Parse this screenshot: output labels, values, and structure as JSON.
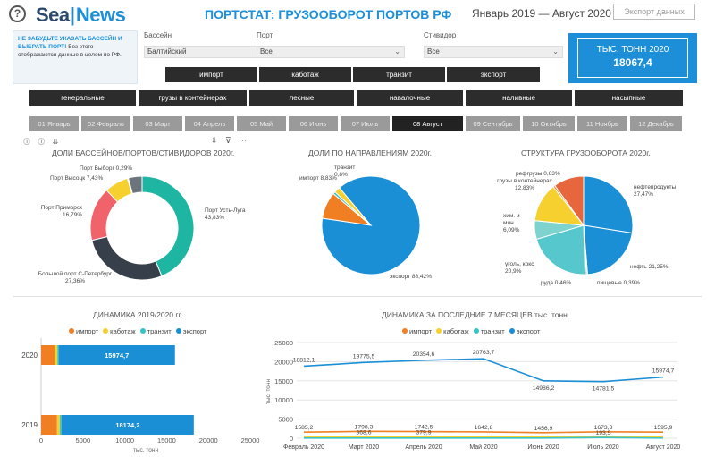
{
  "header": {
    "help_icon": "?",
    "logo_part1": "Sea",
    "logo_sep": "|",
    "logo_part2": "News",
    "title": "ПОРТСТАТ: ГРУЗООБОРОТ ПОРТОВ РФ",
    "period": "Январь 2019  —  Август 2020",
    "export_label": "Экспорт данных"
  },
  "notice": {
    "bold": "НЕ ЗАБУДЬТЕ УКАЗАТЬ БАССЕЙН И ВЫБРАТЬ ПОРТ!",
    "text": " Без этого отображаются данные в целом по РФ."
  },
  "filters": {
    "basin": {
      "label": "Бассейн",
      "value": "Балтийский"
    },
    "port": {
      "label": "Порт",
      "value": "Все"
    },
    "stevedore": {
      "label": "Стивидор",
      "value": "Все"
    }
  },
  "direction_buttons": [
    "импорт",
    "каботаж",
    "транзит",
    "экспорт"
  ],
  "cargo_buttons": [
    "генеральные",
    "грузы в контейнерах",
    "лесные",
    "навалочные",
    "наливные",
    "насыпные"
  ],
  "months": [
    "01 Январь",
    "02 Февраль",
    "03 Март",
    "04 Апрель",
    "05 Май",
    "06 Июнь",
    "07 Июль",
    "08 Август",
    "09 Сентябрь",
    "10 Октябрь",
    "11 Ноябрь",
    "12 Декабрь"
  ],
  "active_month": "08 Август",
  "kpi": {
    "label": "ТЫС. ТОНН 2020",
    "value": "18067,4"
  },
  "toolbar": {
    "left_icons": "⓵ ⓵ ⇊",
    "right_icons": "⇩ ⊽ ⋯"
  },
  "colors": {
    "accent": "#1c8fd8",
    "import": "#f07f23",
    "cabotage": "#f5d02e",
    "transit": "#35c3c9",
    "export": "#1a8fd6",
    "button_dark": "#2c2c2c",
    "month_inactive": "#9a9a9a"
  },
  "chart_data": [
    {
      "type": "pie",
      "title": "ДОЛИ БАССЕЙНОВ/ПОРТОВ/СТИВИДОРОВ 2020г.",
      "variant": "donut",
      "slices": [
        {
          "label": "Порт Усть-Луга",
          "value": 43.83,
          "text": "Порт Усть-Луга 43,83%",
          "color": "#1fb5a3"
        },
        {
          "label": "Большой порт С-Петербург",
          "value": 27.36,
          "text": "Большой порт С-Петербург 27,36%",
          "color": "#37404a"
        },
        {
          "label": "Порт Приморск",
          "value": 16.79,
          "text": "Порт Приморск 16,79%",
          "color": "#f0636b"
        },
        {
          "label": "Порт Высоцк",
          "value": 7.43,
          "text": "Порт Высоцк 7,43%",
          "color": "#f5d02e"
        },
        {
          "label": "Порт Выборг",
          "value": 0.29,
          "text": "Порт Выборг 0,29%",
          "color": "#9aa0a6"
        },
        {
          "label": "",
          "value": 4.3,
          "text": "",
          "color": "#6c757d"
        }
      ]
    },
    {
      "type": "pie",
      "title": "ДОЛИ ПО НАПРАВЛЕНИЯМ 2020г.",
      "slices": [
        {
          "label": "экспорт",
          "value": 88.42,
          "text": "экспорт 88,42%",
          "color": "#1a8fd6"
        },
        {
          "label": "импорт",
          "value": 8.83,
          "text": "импорт 8,83%",
          "color": "#f07f23"
        },
        {
          "label": "транзит",
          "value": 0.8,
          "text": "транзит 0,8%",
          "color": "#35c3c9"
        },
        {
          "label": "каботаж",
          "value": 1.95,
          "text": "",
          "color": "#f5d02e"
        }
      ]
    },
    {
      "type": "pie",
      "title": "СТРУКТУРА ГРУЗООБОРОТА 2020г.",
      "slices": [
        {
          "label": "нефтепродукты",
          "value": 27.47,
          "text": "нефтепродукты 27,47%",
          "color": "#1a8fd6"
        },
        {
          "label": "нефть",
          "value": 21.25,
          "text": "нефть 21,25%",
          "color": "#1a8fd6"
        },
        {
          "label": "пищевые",
          "value": 0.39,
          "text": "пищевые 0,39%",
          "color": "#3ec6cc"
        },
        {
          "label": "руда",
          "value": 0.46,
          "text": "руда 0,46%",
          "color": "#3ec6cc"
        },
        {
          "label": "уголь, кокс",
          "value": 20.9,
          "text": "уголь, кокс 20,9%",
          "color": "#56c7cd"
        },
        {
          "label": "хим. и мин. удобрения",
          "value": 6.09,
          "text": "хим. и мин. 6,09%",
          "color": "#7ed3cf"
        },
        {
          "label": "грузы в контейнерах",
          "value": 12.83,
          "text": "грузы в контейнерах 12,83%",
          "color": "#f5d02e"
        },
        {
          "label": "рефгрузы",
          "value": 0.63,
          "text": "рефгрузы 0,63%",
          "color": "#f07f23"
        },
        {
          "label": "",
          "value": 9.98,
          "text": "",
          "color": "#e8663b"
        }
      ]
    },
    {
      "type": "bar",
      "orientation": "horizontal",
      "stacked": true,
      "title": "ДИНАМИКА 2019/2020 гг.",
      "categories": [
        "2020",
        "2019"
      ],
      "series": [
        {
          "name": "импорт",
          "values": [
            1600,
            1900
          ],
          "color": "#f07f23"
        },
        {
          "name": "каботаж",
          "values": [
            350,
            350
          ],
          "color": "#f5d02e"
        },
        {
          "name": "транзит",
          "values": [
            150,
            200
          ],
          "color": "#35c3c9"
        },
        {
          "name": "экспорт",
          "values": [
            13900,
            15800
          ],
          "color": "#1a8fd6"
        }
      ],
      "data_labels": [
        "15974,7",
        "18174,2"
      ],
      "xlim": [
        0,
        25000
      ],
      "xticks": [
        "0",
        "5000",
        "10000",
        "15000",
        "20000",
        "25000"
      ],
      "xlabel": "тыс. тонн",
      "legend": "top"
    },
    {
      "type": "line",
      "title": "ДИНАМИКА ЗА ПОСЛЕДНИЕ 7 МЕСЯЦЕВ тыс. тонн",
      "x": [
        "Февраль 2020",
        "Март 2020",
        "Апрель 2020",
        "Май 2020",
        "Июнь 2020",
        "Июль 2020",
        "Август 2020"
      ],
      "series": [
        {
          "name": "импорт",
          "color": "#f07f23",
          "values": [
            1585.2,
            1798.3,
            1742.5,
            1642.8,
            1456.9,
            1673.3,
            1595.9
          ],
          "labels": [
            "1585,2",
            "1798,3",
            "1742,5",
            "1642,8",
            "1456,9",
            "1673,3",
            "1595,9"
          ]
        },
        {
          "name": "каботаж",
          "color": "#f5d02e",
          "values": [
            350,
            368.6,
            379.9,
            360,
            350,
            360,
            370
          ],
          "labels": [
            "",
            "368,6",
            "379,9",
            "",
            "",
            "",
            ""
          ]
        },
        {
          "name": "транзит",
          "color": "#35c3c9",
          "values": [
            40,
            50,
            45,
            48,
            40,
            193.5,
            30
          ],
          "labels": [
            "",
            "",
            "",
            "",
            "",
            "193,5",
            ""
          ]
        },
        {
          "name": "экспорт",
          "color": "#1a8fd6",
          "values": [
            18812.1,
            19775.5,
            20354.6,
            20763.7,
            14986.2,
            14781.5,
            15974.7
          ],
          "labels": [
            "18812,1",
            "19775,5",
            "20354,6",
            "20763,7",
            "14986,2",
            "14781,5",
            "15974,7"
          ]
        }
      ],
      "ylim": [
        0,
        25000
      ],
      "yticks": [
        "0",
        "5000",
        "10000",
        "15000",
        "20000",
        "25000"
      ],
      "ylabel": "тыс. тонн",
      "legend": "top"
    }
  ]
}
